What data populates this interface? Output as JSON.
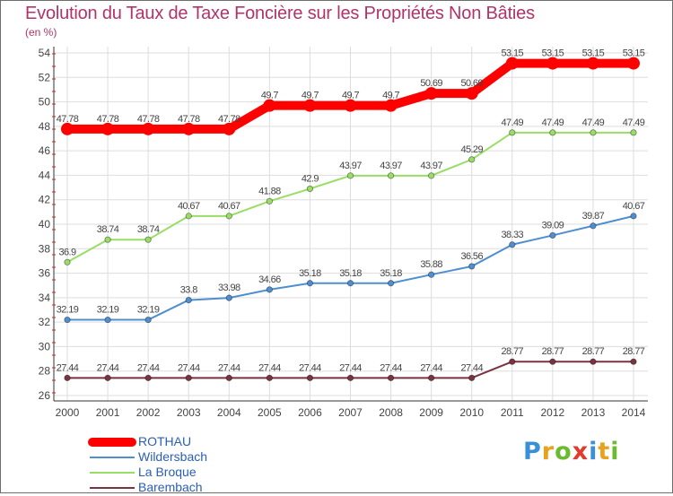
{
  "title": "Evolution du Taux de Taxe Foncière sur les Propriétés Non Bâties",
  "unit": "(en %)",
  "logo": {
    "letters": [
      "P",
      "r",
      "o",
      "x",
      "i",
      "t",
      "i"
    ],
    "colors": [
      "#3a8fd8",
      "#e8a21c",
      "#6cba2f",
      "#e23a2c",
      "#3a8fd8",
      "#e8a21c",
      "#6cba2f"
    ]
  },
  "chart_data": {
    "type": "line",
    "title": "Evolution du Taux de Taxe Foncière sur les Propriétés Non Bâties",
    "ylabel": "(en %)",
    "xlabel": "",
    "x": [
      "2000",
      "2001",
      "2002",
      "2003",
      "2004",
      "2005",
      "2006",
      "2007",
      "2008",
      "2009",
      "2010",
      "2011",
      "2012",
      "2013",
      "2014"
    ],
    "ylim": [
      26,
      54
    ],
    "yticks": [
      26,
      28,
      30,
      32,
      34,
      36,
      38,
      40,
      42,
      44,
      46,
      48,
      50,
      52,
      54
    ],
    "grid": true,
    "legend_position": "bottom-left",
    "series": [
      {
        "name": "ROTHAU",
        "color": "#ff0000",
        "values": [
          47.78,
          47.78,
          47.78,
          47.78,
          47.78,
          49.7,
          49.7,
          49.7,
          49.7,
          50.69,
          50.69,
          53.15,
          53.15,
          53.15,
          53.15
        ],
        "labels": [
          "47.78",
          "47.78",
          "47.78",
          "47.78",
          "47.78",
          "49.7",
          "49.7",
          "49.7",
          "49.7",
          "50.69",
          "50.69",
          "53.15",
          "53.15",
          "53.15",
          "53.15"
        ]
      },
      {
        "name": "Wildersbach",
        "color": "#4f8fd0",
        "values": [
          32.19,
          32.19,
          32.19,
          33.8,
          33.98,
          34.66,
          35.18,
          35.18,
          35.18,
          35.88,
          36.56,
          38.33,
          39.09,
          39.87,
          40.67
        ],
        "labels": [
          "32.19",
          "32.19",
          "32.19",
          "33.8",
          "33.98",
          "34.66",
          "35.18",
          "35.18",
          "35.18",
          "35.88",
          "36.56",
          "38.33",
          "39.09",
          "39.87",
          "40.67"
        ]
      },
      {
        "name": "La Broque",
        "color": "#99dd66",
        "values": [
          36.9,
          38.74,
          38.74,
          40.67,
          40.67,
          41.88,
          42.9,
          43.97,
          43.97,
          43.97,
          45.29,
          47.49,
          47.49,
          47.49,
          47.49
        ],
        "labels": [
          "36.9",
          "38.74",
          "38.74",
          "40.67",
          "40.67",
          "41.88",
          "42.9",
          "43.97",
          "43.97",
          "43.97",
          "45.29",
          "47.49",
          "47.49",
          "47.49",
          "47.49"
        ]
      },
      {
        "name": "Barembach",
        "color": "#7a3340",
        "values": [
          27.44,
          27.44,
          27.44,
          27.44,
          27.44,
          27.44,
          27.44,
          27.44,
          27.44,
          27.44,
          27.44,
          28.77,
          28.77,
          28.77,
          28.77
        ],
        "labels": [
          "27.44",
          "27.44",
          "27.44",
          "27.44",
          "27.44",
          "27.44",
          "27.44",
          "27.44",
          "27.44",
          "27.44",
          "27.44",
          "28.77",
          "28.77",
          "28.77",
          "28.77"
        ]
      }
    ]
  }
}
